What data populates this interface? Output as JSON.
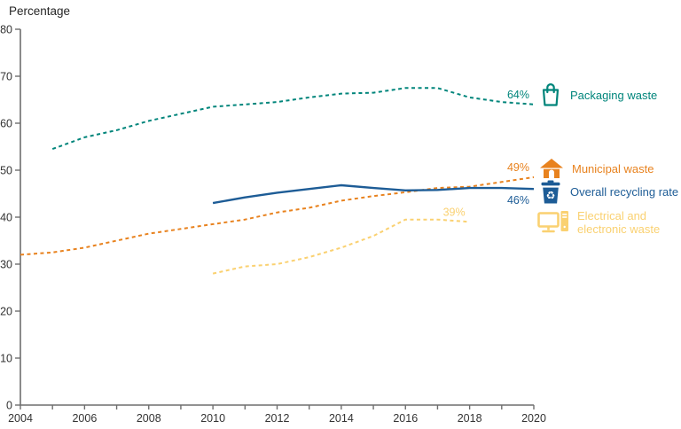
{
  "title": {
    "text": "Percentage"
  },
  "chart_data": {
    "type": "line",
    "title": "Percentage",
    "xlabel": "",
    "ylabel": "Percentage",
    "xlim": [
      2004,
      2020
    ],
    "ylim": [
      0,
      80
    ],
    "xtick_labels": [
      "2004",
      "2006",
      "2008",
      "2010",
      "2012",
      "2014",
      "2016",
      "2018",
      "2020"
    ],
    "xticks_labeled": [
      2004,
      2006,
      2008,
      2010,
      2012,
      2014,
      2016,
      2018,
      2020
    ],
    "xticks_minor_every_year": true,
    "yticks": [
      0,
      10,
      20,
      30,
      40,
      50,
      60,
      70,
      80
    ],
    "grid": false,
    "legend_position": "right",
    "series": [
      {
        "name": "Packaging waste",
        "color": "#00857b",
        "style": "dashed",
        "start_year": 2005,
        "values": [
          54.5,
          57,
          58.5,
          60.5,
          62,
          63.5,
          64,
          64.5,
          65.5,
          66.3,
          66.5,
          67.5,
          67.5,
          65.5,
          64.5,
          64
        ],
        "end_label": "64%",
        "end_label_side": "above"
      },
      {
        "name": "Municipal waste",
        "color": "#e8821e",
        "style": "dashed",
        "start_year": 2004,
        "values": [
          32,
          32.5,
          33.5,
          35,
          36.5,
          37.5,
          38.5,
          39.5,
          41,
          42,
          43.5,
          44.5,
          45.3,
          46.2,
          46.5,
          47.5,
          48.5
        ],
        "end_label": "49%",
        "end_label_side": "above"
      },
      {
        "name": "Overall recycling rate",
        "color": "#1d5c96",
        "style": "solid",
        "start_year": 2010,
        "values": [
          43,
          44.2,
          45.2,
          46,
          46.8,
          46.2,
          45.7,
          45.8,
          46.2,
          46.2,
          46
        ],
        "end_label": "46%",
        "end_label_side": "below"
      },
      {
        "name": "Electrical and electronic waste",
        "color": "#fad171",
        "style": "dashed",
        "start_year": 2010,
        "values": [
          28,
          29.5,
          30,
          31.5,
          33.5,
          36,
          39.5,
          39.5,
          39
        ],
        "end_label": "39%",
        "end_label_side": "above"
      }
    ]
  },
  "legend": {
    "items": [
      {
        "label": "Packaging waste",
        "icon": "shopping-bag-icon",
        "color": "#00857b"
      },
      {
        "label": "Municipal waste",
        "icon": "house-icon",
        "color": "#e8821e"
      },
      {
        "label": "Overall recycling rate",
        "icon": "recycle-bin-icon",
        "color": "#1d5c96"
      },
      {
        "label_lines": [
          "Electrical and",
          "electronic waste"
        ],
        "icon": "computer-icon",
        "color": "#fad171"
      }
    ]
  },
  "colors": {
    "axis": "#6e6e6e",
    "tick_text": "#333333",
    "teal": "#00857b",
    "orange": "#e8821e",
    "blue": "#1d5c96",
    "yellow": "#fad171"
  }
}
